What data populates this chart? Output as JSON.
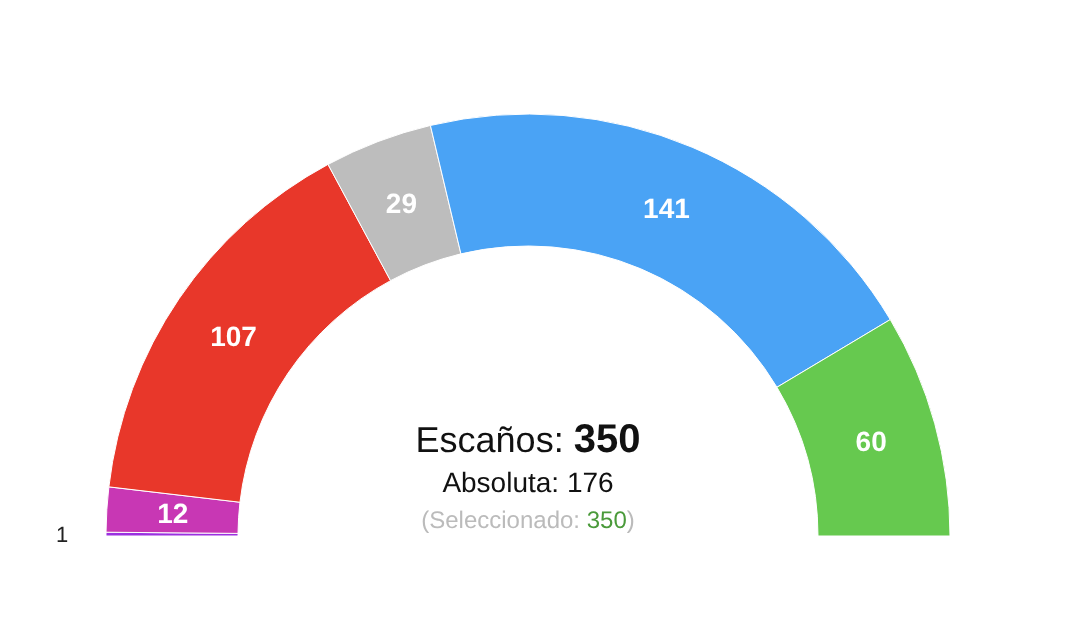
{
  "chart_data": {
    "type": "donut",
    "categories": [
      null,
      null,
      null,
      null,
      null,
      null
    ],
    "values": [
      1,
      12,
      107,
      29,
      141,
      60
    ],
    "colors": [
      "#9b30e0",
      "#c837b4",
      "#e8372a",
      "#bdbdbd",
      "#4aa3f5",
      "#66c94f"
    ],
    "data_labels": true,
    "annotations": [
      "Escaños: 350",
      "Absoluta: 176",
      "(Seleccionado: 350)"
    ]
  }
}
